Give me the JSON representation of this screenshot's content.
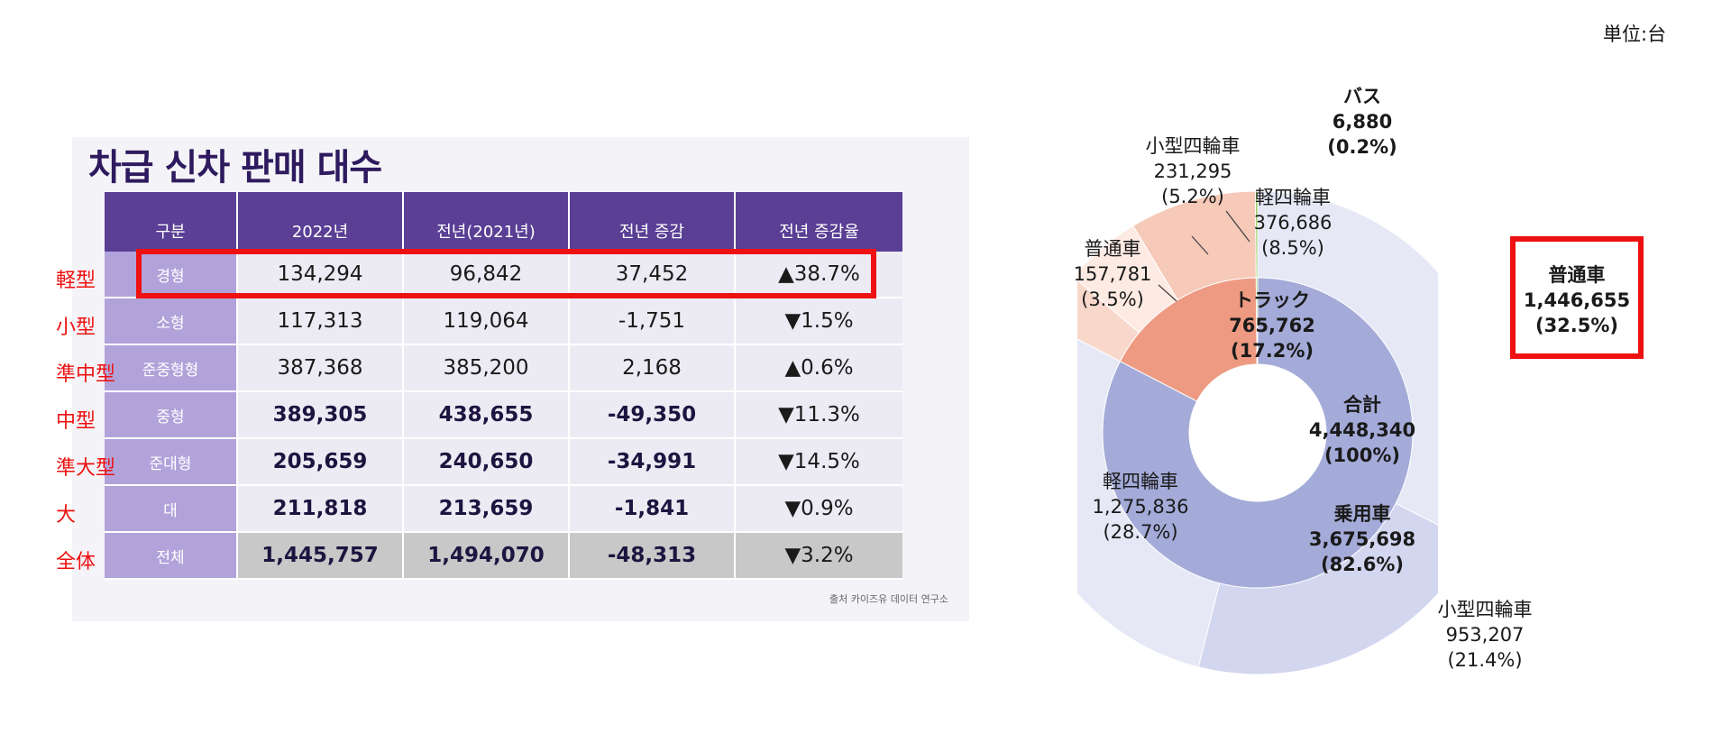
{
  "unit_label": "単位:台",
  "table": {
    "title": "차급 신차 판매 대수",
    "headers": [
      "구분",
      "2022년",
      "전년(2021년)",
      "전년 증감",
      "전년 증감율"
    ],
    "rows": [
      {
        "jp": "軽型",
        "category": "경형",
        "y2022": "134,294",
        "y2021": "96,842",
        "diff": "37,452",
        "rate": "▲38.7%",
        "dir": "up",
        "bold": false
      },
      {
        "jp": "小型",
        "category": "소형",
        "y2022": "117,313",
        "y2021": "119,064",
        "diff": "-1,751",
        "rate": "▼1.5%",
        "dir": "down",
        "bold": false
      },
      {
        "jp": "準中型",
        "category": "준중형형",
        "y2022": "387,368",
        "y2021": "385,200",
        "diff": "2,168",
        "rate": "▲0.6%",
        "dir": "up",
        "bold": false
      },
      {
        "jp": "中型",
        "category": "중형",
        "y2022": "389,305",
        "y2021": "438,655",
        "diff": "-49,350",
        "rate": "▼11.3%",
        "dir": "down",
        "bold": true
      },
      {
        "jp": "準大型",
        "category": "준대형",
        "y2022": "205,659",
        "y2021": "240,650",
        "diff": "-34,991",
        "rate": "▼14.5%",
        "dir": "down",
        "bold": true
      },
      {
        "jp": "大",
        "category": "대",
        "y2022": "211,818",
        "y2021": "213,659",
        "diff": "-1,841",
        "rate": "▼0.9%",
        "dir": "down",
        "bold": true
      },
      {
        "jp": "全体",
        "category": "전체",
        "y2022": "1,445,757",
        "y2021": "1,494,070",
        "diff": "-48,313",
        "rate": "▼3.2%",
        "dir": "down",
        "bold": true
      }
    ],
    "source": "출처 카이즈유 데이터 연구소"
  },
  "chart_data": {
    "type": "pie",
    "center": {
      "label": "合計",
      "value": "4,448,340",
      "pct": "(100%)"
    },
    "inner": [
      {
        "name": "乗用車",
        "value": 3675698,
        "value_text": "3,675,698",
        "pct_text": "(82.6%)",
        "color": "#a4abd8"
      },
      {
        "name": "トラック",
        "value": 765762,
        "value_text": "765,762",
        "pct_text": "(17.2%)",
        "color": "#ee9a82"
      },
      {
        "name": "バス",
        "value": 6880,
        "value_text": "6,880",
        "pct_text": "(0.2%)",
        "color": "#8ecb5a"
      }
    ],
    "outer": [
      {
        "name": "普通車",
        "value": 1446655,
        "value_text": "1,446,655",
        "pct_text": "(32.5%)",
        "color": "#e6e8f6"
      },
      {
        "name": "小型四輪車",
        "value": 953207,
        "value_text": "953,207",
        "pct_text": "(21.4%)",
        "color": "#d3d6ef"
      },
      {
        "name": "軽四輪車",
        "value": 1275836,
        "value_text": "1,275,836",
        "pct_text": "(28.7%)",
        "color": "#e6e8f6"
      },
      {
        "name": "普通車",
        "value": 157781,
        "value_text": "157,781",
        "pct_text": "(3.5%)",
        "color": "#f9d8cc"
      },
      {
        "name": "小型四輪車",
        "value": 231295,
        "value_text": "231,295",
        "pct_text": "(5.2%)",
        "color": "#fdebe3"
      },
      {
        "name": "軽四輪車",
        "value": 376686,
        "value_text": "376,686",
        "pct_text": "(8.5%)",
        "color": "#f6c9b8"
      },
      {
        "name": "バス",
        "value": 6880,
        "value_text": "6,880",
        "pct_text": "(0.2%)",
        "color": "#8ecb5a"
      }
    ]
  }
}
